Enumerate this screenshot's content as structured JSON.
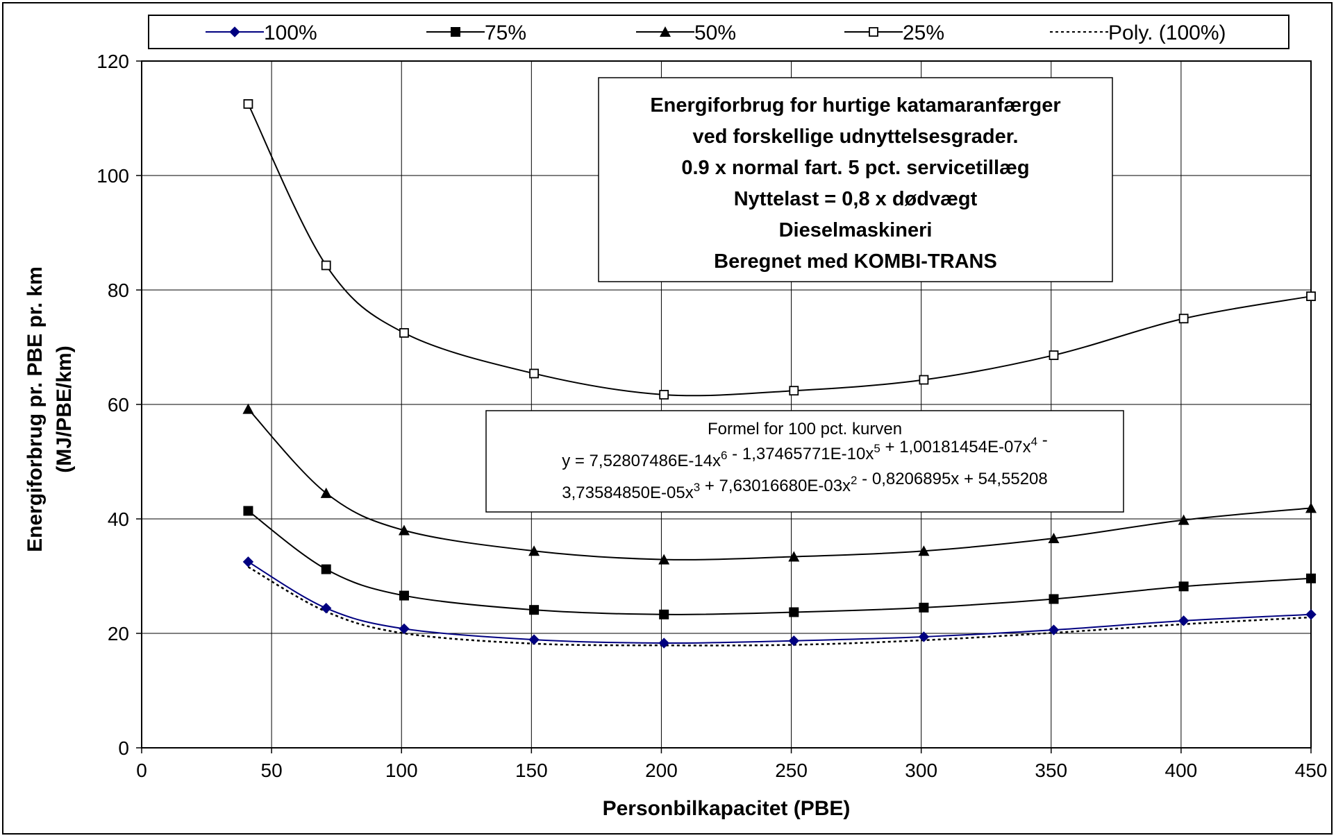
{
  "chart_data": {
    "type": "line",
    "title_lines": [
      "Energiforbrug for hurtige katamaranfærger",
      "ved forskellige udnyttelsesgrader.",
      "0.9 x normal fart. 5 pct. servicetillæg",
      "Nyttelast = 0,8 x dødvægt",
      "Dieselmaskineri",
      "Beregnet med KOMBI-TRANS"
    ],
    "xlabel": "Personbilkapacitet (PBE)",
    "ylabel_lines": [
      "Energiforbrug pr. PBE pr. km",
      "(MJ/PBE/km)"
    ],
    "xlim": [
      0,
      450
    ],
    "ylim": [
      0,
      120
    ],
    "xticks": [
      0,
      50,
      100,
      150,
      200,
      250,
      300,
      350,
      400,
      450
    ],
    "yticks": [
      0,
      20,
      40,
      60,
      80,
      100,
      120
    ],
    "grid": true,
    "legend_position": "top",
    "x": [
      41,
      71,
      101,
      151,
      201,
      251,
      301,
      351,
      401,
      450
    ],
    "series": [
      {
        "name": "100%",
        "marker": "diamond",
        "color": "#000080",
        "values": [
          32.5,
          24.4,
          20.8,
          18.9,
          18.3,
          18.7,
          19.4,
          20.6,
          22.2,
          23.3
        ]
      },
      {
        "name": "75%",
        "marker": "square",
        "color": "#000000",
        "values": [
          41.4,
          31.2,
          26.6,
          24.1,
          23.3,
          23.7,
          24.5,
          26.0,
          28.2,
          29.6
        ]
      },
      {
        "name": "50%",
        "marker": "triangle",
        "color": "#000000",
        "values": [
          59.2,
          44.5,
          38.0,
          34.4,
          32.9,
          33.4,
          34.4,
          36.6,
          39.8,
          41.9
        ]
      },
      {
        "name": "25%",
        "marker": "open-square",
        "color": "#000000",
        "values": [
          112.5,
          84.3,
          72.5,
          65.4,
          61.7,
          62.4,
          64.3,
          68.6,
          75.0,
          78.9
        ]
      },
      {
        "name": "Poly. (100%)",
        "marker": "none",
        "color": "#000000",
        "dashed": true,
        "values": [
          31.6,
          23.8,
          20.0,
          18.2,
          17.9,
          18.0,
          18.8,
          20.1,
          21.6,
          22.8
        ]
      }
    ],
    "formula_box": {
      "title": "Formel for 100 pct. kurven",
      "line1_parts": [
        {
          "t": "y = 7,52807486E-14x"
        },
        {
          "sup": "6"
        },
        {
          "t": " - 1,37465771E-10x"
        },
        {
          "sup": "5"
        },
        {
          "t": " + 1,00181454E-07x"
        },
        {
          "sup": "4"
        },
        {
          "t": " -"
        }
      ],
      "line2_parts": [
        {
          "t": "3,73584850E-05x"
        },
        {
          "sup": "3"
        },
        {
          "t": " + 7,63016680E-03x"
        },
        {
          "sup": "2"
        },
        {
          "t": " - 0,8206895x + 54,55208"
        }
      ]
    }
  }
}
